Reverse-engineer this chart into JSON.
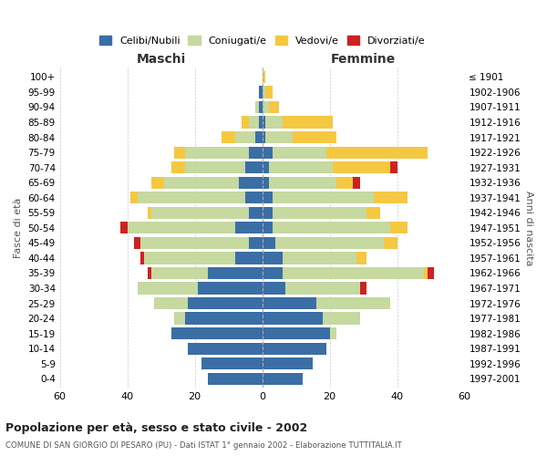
{
  "age_groups_display": [
    "100+",
    "95-99",
    "90-94",
    "85-89",
    "80-84",
    "75-79",
    "70-74",
    "65-69",
    "60-64",
    "55-59",
    "50-54",
    "45-49",
    "40-44",
    "35-39",
    "30-34",
    "25-29",
    "20-24",
    "15-19",
    "10-14",
    "5-9",
    "0-4"
  ],
  "birth_years_display": [
    "≤ 1901",
    "1902-1906",
    "1907-1911",
    "1912-1916",
    "1917-1921",
    "1922-1926",
    "1927-1931",
    "1932-1936",
    "1937-1941",
    "1942-1946",
    "1947-1951",
    "1952-1956",
    "1957-1961",
    "1962-1966",
    "1967-1971",
    "1972-1976",
    "1977-1981",
    "1982-1986",
    "1987-1991",
    "1992-1996",
    "1997-2001"
  ],
  "colors": {
    "celibi": "#3A6EA5",
    "coniugati": "#C5D9A0",
    "vedovi": "#F5C842",
    "divorziati": "#CC2222"
  },
  "maschi": {
    "celibi": [
      0,
      1,
      1,
      1,
      2,
      4,
      5,
      7,
      5,
      4,
      8,
      4,
      8,
      16,
      19,
      22,
      23,
      27,
      22,
      18,
      16
    ],
    "coniugati": [
      0,
      0,
      1,
      3,
      6,
      19,
      18,
      22,
      32,
      29,
      32,
      32,
      27,
      17,
      18,
      10,
      3,
      0,
      0,
      0,
      0
    ],
    "vedovi": [
      0,
      0,
      0,
      2,
      4,
      3,
      4,
      4,
      2,
      1,
      0,
      0,
      0,
      0,
      0,
      0,
      0,
      0,
      0,
      0,
      0
    ],
    "divorziati": [
      0,
      0,
      0,
      0,
      0,
      0,
      0,
      0,
      0,
      0,
      2,
      2,
      1,
      1,
      0,
      0,
      0,
      0,
      0,
      0,
      0
    ]
  },
  "femmine": {
    "celibi": [
      0,
      0,
      0,
      1,
      1,
      3,
      2,
      2,
      3,
      3,
      3,
      4,
      6,
      6,
      7,
      16,
      18,
      20,
      19,
      15,
      12
    ],
    "coniugati": [
      0,
      1,
      2,
      5,
      8,
      16,
      19,
      20,
      30,
      28,
      35,
      32,
      22,
      42,
      22,
      22,
      11,
      2,
      0,
      0,
      0
    ],
    "vedovi": [
      1,
      2,
      3,
      15,
      13,
      30,
      17,
      5,
      10,
      4,
      5,
      4,
      3,
      1,
      0,
      0,
      0,
      0,
      0,
      0,
      0
    ],
    "divorziati": [
      0,
      0,
      0,
      0,
      0,
      0,
      2,
      2,
      0,
      0,
      0,
      0,
      0,
      2,
      2,
      0,
      0,
      0,
      0,
      0,
      0
    ]
  },
  "title": "Popolazione per età, sesso e stato civile - 2002",
  "subtitle": "COMUNE DI SAN GIORGIO DI PESARO (PU) - Dati ISTAT 1° gennaio 2002 - Elaborazione TUTTITALIA.IT",
  "xlabel_left": "Maschi",
  "xlabel_right": "Femmine",
  "ylabel_left": "Fasce di età",
  "ylabel_right": "Anni di nascita",
  "legend_labels": [
    "Celibi/Nubili",
    "Coniugati/e",
    "Vedovi/e",
    "Divorziati/e"
  ],
  "xlim": 60,
  "background_color": "#FFFFFF",
  "grid_color": "#CCCCCC"
}
